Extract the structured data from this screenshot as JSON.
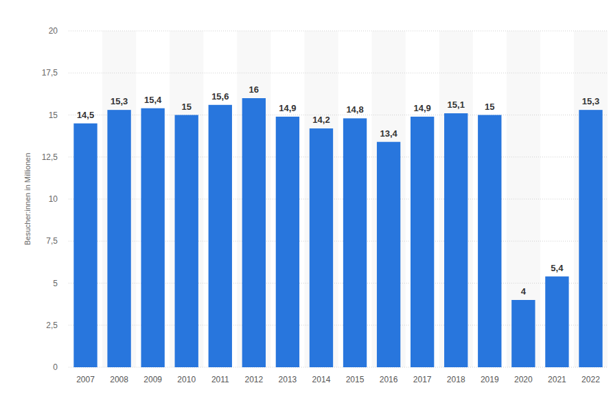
{
  "chart_data": {
    "type": "bar",
    "y_label": "Besucher:innen in Millionen",
    "categories": [
      "2007",
      "2008",
      "2009",
      "2010",
      "2011",
      "2012",
      "2013",
      "2014",
      "2015",
      "2016",
      "2017",
      "2018",
      "2019",
      "2020",
      "2021",
      "2022"
    ],
    "values": [
      14.5,
      15.3,
      15.4,
      15,
      15.6,
      16,
      14.9,
      14.2,
      14.8,
      13.4,
      14.9,
      15.1,
      15,
      4,
      5.4,
      15.3
    ],
    "value_labels": [
      "14,5",
      "15,3",
      "15,4",
      "15",
      "15,6",
      "16",
      "14,9",
      "14,2",
      "14,8",
      "13,4",
      "14,9",
      "15,1",
      "15",
      "4",
      "5,4",
      "15,3"
    ],
    "color": "#2876dd",
    "ylim": [
      0,
      20
    ],
    "yticks": [
      0,
      {
        "value": 2.5,
        "label": "2,5"
      },
      5,
      {
        "value": 7.5,
        "label": "7,5"
      },
      10,
      {
        "value": 12.5,
        "label": "12,5"
      },
      15,
      {
        "value": 17.5,
        "label": "17,5"
      },
      20
    ],
    "grid": true,
    "data_labels": true
  }
}
